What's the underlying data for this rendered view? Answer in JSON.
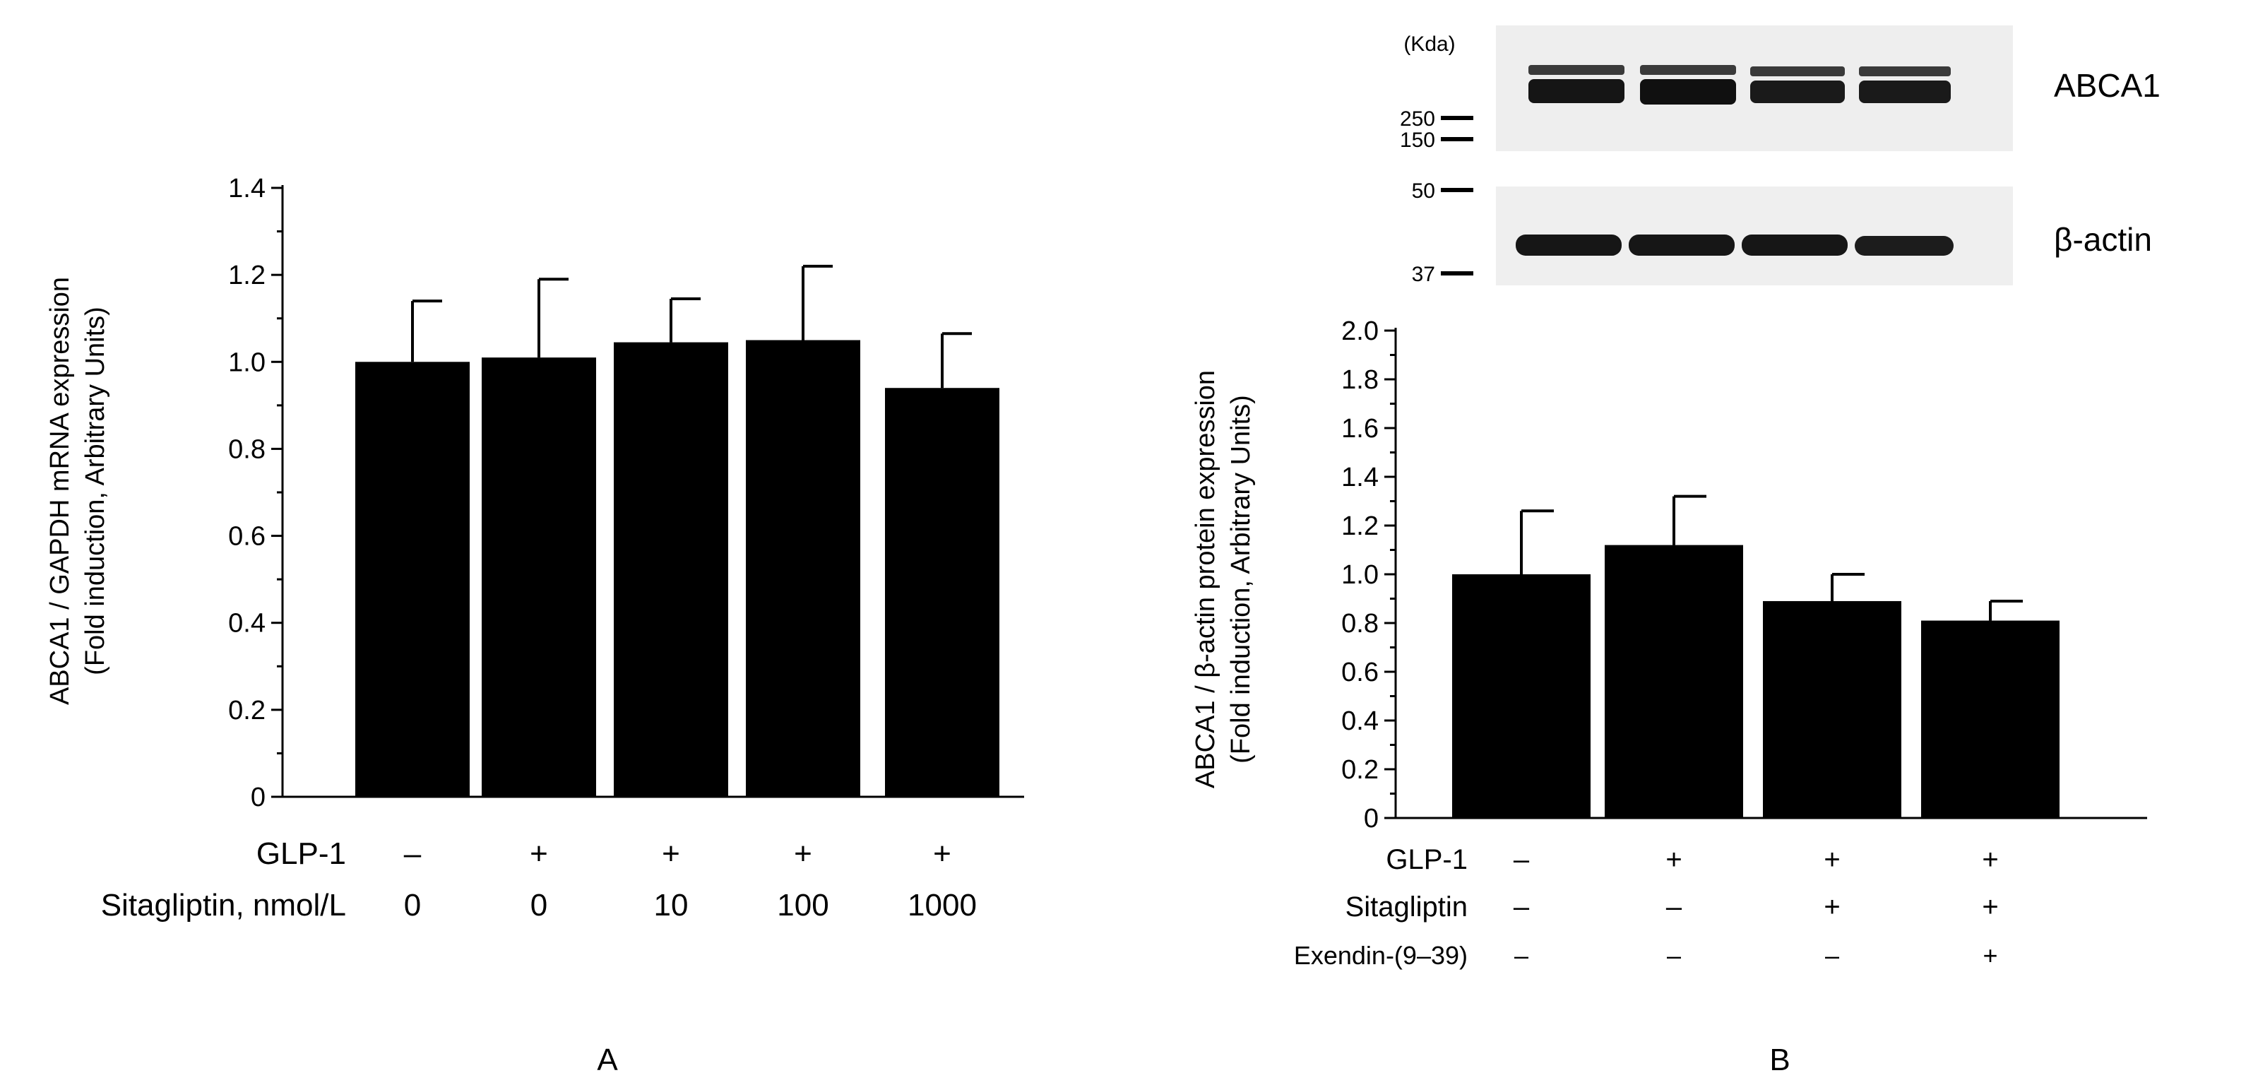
{
  "chart_data": [
    {
      "panel": "A",
      "type": "bar",
      "ylabel": [
        "ABCA1 / GAPDH  mRNA expression",
        "(Fold induction, Arbitrary Units)"
      ],
      "ylim": [
        0,
        1.4
      ],
      "yticks": [
        0,
        0.2,
        0.4,
        0.6,
        0.8,
        1.0,
        1.2,
        1.4
      ],
      "ytick_labels": [
        "0",
        "0.2",
        "0.4",
        "0.6",
        "0.8",
        "1.0",
        "1.2",
        "1.4"
      ],
      "values": [
        1.0,
        1.01,
        1.045,
        1.05,
        0.94
      ],
      "errors": [
        0.14,
        0.18,
        0.1,
        0.17,
        0.125
      ],
      "conditions": [
        {
          "label": "GLP-1",
          "values": [
            "–",
            "+",
            "+",
            "+",
            "+"
          ]
        },
        {
          "label": "Sitagliptin, nmol/L",
          "values": [
            "0",
            "0",
            "10",
            "100",
            "1000"
          ]
        }
      ]
    },
    {
      "panel": "B",
      "type": "bar",
      "ylabel": [
        "ABCA1 / β-actin protein expression",
        "(Fold induction, Arbitrary Units)"
      ],
      "ylim": [
        0,
        2.0
      ],
      "yticks": [
        0,
        0.2,
        0.4,
        0.6,
        0.8,
        1.0,
        1.2,
        1.4,
        1.6,
        1.8,
        2.0
      ],
      "ytick_labels": [
        "0",
        "0.2",
        "0.4",
        "0.6",
        "0.8",
        "1.0",
        "1.2",
        "1.4",
        "1.6",
        "1.8",
        "2.0"
      ],
      "values": [
        1.0,
        1.12,
        0.89,
        0.81
      ],
      "errors": [
        0.26,
        0.2,
        0.11,
        0.08
      ],
      "conditions": [
        {
          "label": "GLP-1",
          "values": [
            "–",
            "+",
            "+",
            "+"
          ]
        },
        {
          "label": "Sitagliptin",
          "values": [
            "–",
            "–",
            "+",
            "+"
          ]
        },
        {
          "label": "Exendin-(9–39)",
          "values": [
            "–",
            "–",
            "–",
            "+"
          ]
        }
      ]
    }
  ],
  "blot": {
    "unit_label": "(Kda)",
    "markers": [
      "250",
      "150",
      "50",
      "37"
    ],
    "band_labels": [
      "ABCA1",
      "β-actin"
    ]
  },
  "panel_labels": [
    "A",
    "B"
  ],
  "colors": {
    "bar": "#000000",
    "blot_bg": "#eeeeee",
    "band": "#1a1a1a"
  }
}
